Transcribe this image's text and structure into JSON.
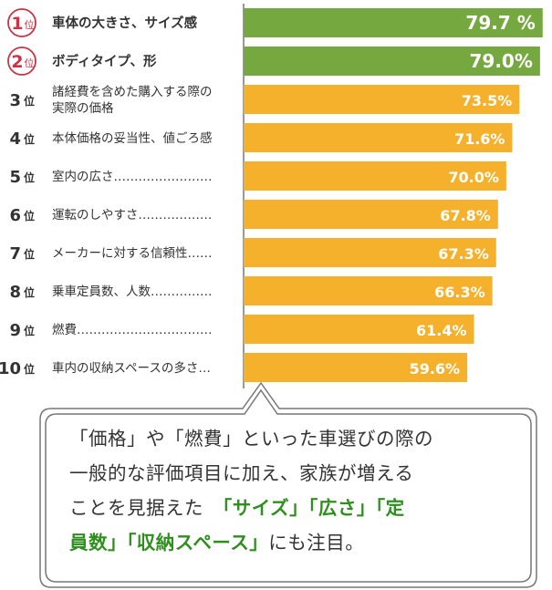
{
  "chart_data": {
    "type": "bar",
    "orientation": "horizontal",
    "ranks": [
      "1",
      "2",
      "3",
      "4",
      "5",
      "6",
      "7",
      "8",
      "9",
      "10"
    ],
    "rank_suffix": "位",
    "categories": [
      [
        "車体の大きさ、サイズ感"
      ],
      [
        "ボディタイプ、形"
      ],
      [
        "諸経費を含めた購入する際の",
        "実際の価格"
      ],
      [
        "本体価格の妥当性、値ごろ感"
      ],
      [
        "室内の広さ……………………"
      ],
      [
        "運転のしやすさ………………"
      ],
      [
        "メーカーに対する信頼性……"
      ],
      [
        "乗車定員数、人数……………"
      ],
      [
        "燃費……………………………"
      ],
      [
        "車内の収納スペースの多さ…"
      ]
    ],
    "values": [
      79.7,
      79.0,
      73.5,
      71.6,
      70.0,
      67.8,
      67.3,
      66.3,
      61.4,
      59.6
    ],
    "value_labels": [
      "79.7 %",
      "79.0%",
      "73.5%",
      "71.6%",
      "70.0%",
      "67.8%",
      "67.3%",
      "66.3%",
      "61.4%",
      "59.6%"
    ],
    "highlight_count": 2,
    "xlim": [
      0,
      80
    ],
    "colors": {
      "top": "#75a940",
      "rest": "#f5b12c",
      "rank_circle": "#cc3344",
      "axis": "#333333"
    }
  },
  "callout": {
    "line1": "「価格」や「燃費」といった車選びの際の",
    "line2": "一般的な評価項目に加え、家族が増える",
    "line3_plain": "ことを見据えた　",
    "line3_highlight": "「サイズ」「広さ」「定",
    "line4_highlight": "員数」「収納スペース」",
    "line4_plain": "にも注目。"
  }
}
